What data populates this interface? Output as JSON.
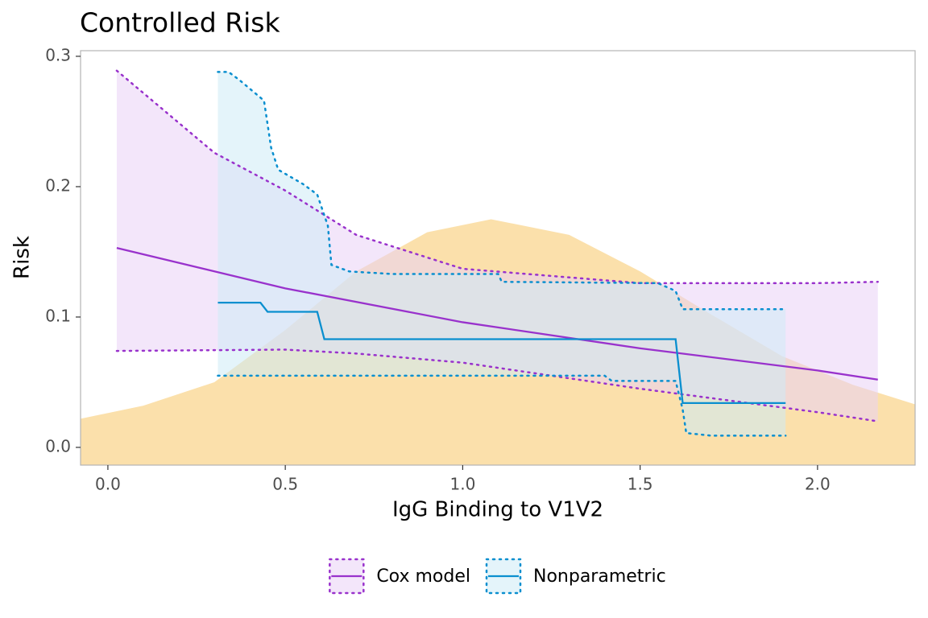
{
  "chart_data": {
    "type": "line",
    "title": "Controlled Risk",
    "x_label": "IgG Binding to V1V2",
    "y_label": "Risk",
    "xlim": [
      -0.077,
      2.275
    ],
    "ylim": [
      -0.0136,
      0.3043
    ],
    "xticks": [
      {
        "value": 0,
        "label": "0.0"
      },
      {
        "value": 0.5,
        "label": "0.5"
      },
      {
        "value": 1,
        "label": "1.0"
      },
      {
        "value": 1.5,
        "label": "1.5"
      },
      {
        "value": 2,
        "label": "2.0"
      }
    ],
    "yticks": [
      {
        "value": 0,
        "label": "0.0"
      },
      {
        "value": 0.1,
        "label": "0.1"
      },
      {
        "value": 0.2,
        "label": "0.2"
      },
      {
        "value": 0.3,
        "label": "0.3"
      }
    ],
    "grid": false,
    "legend_position": "bottom",
    "density": {
      "color": "#fbe0ab",
      "x": [
        -0.077,
        0.1,
        0.3,
        0.5,
        0.7,
        0.9,
        1.08,
        1.3,
        1.5,
        1.7,
        1.9,
        2.1,
        2.275
      ],
      "values": [
        0.022,
        0.032,
        0.05,
        0.09,
        0.135,
        0.165,
        0.175,
        0.163,
        0.135,
        0.102,
        0.07,
        0.048,
        0.033
      ]
    },
    "series": [
      {
        "name": "Cox model",
        "color": "#9932cc",
        "band_color": "#e9d2f5",
        "x": [
          0.025,
          0.5,
          1.0,
          1.5,
          2.0,
          2.17
        ],
        "values": [
          0.153,
          0.122,
          0.096,
          0.076,
          0.059,
          0.052
        ],
        "upper": {
          "x": [
            0.025,
            0.3,
            0.5,
            0.7,
            1.0,
            1.5,
            2.0,
            2.17
          ],
          "values": [
            0.289,
            0.226,
            0.197,
            0.163,
            0.137,
            0.126,
            0.126,
            0.127
          ]
        },
        "lower": {
          "x": [
            0.025,
            0.5,
            0.7,
            1.0,
            1.5,
            2.0,
            2.17
          ],
          "values": [
            0.074,
            0.075,
            0.072,
            0.065,
            0.045,
            0.027,
            0.02
          ]
        }
      },
      {
        "name": "Nonparametric",
        "color": "#0a8fcf",
        "band_color": "#cdebf5",
        "x": [
          0.31,
          0.43,
          0.45,
          0.59,
          0.61,
          1.6,
          1.62,
          1.91
        ],
        "values": [
          0.111,
          0.111,
          0.104,
          0.104,
          0.083,
          0.083,
          0.034,
          0.034
        ],
        "upper": {
          "x": [
            0.31,
            0.34,
            0.37,
            0.44,
            0.46,
            0.48,
            0.55,
            0.59,
            0.62,
            0.63,
            0.68,
            0.8,
            1.1,
            1.11,
            1.55,
            1.6,
            1.62,
            1.91
          ],
          "values": [
            0.288,
            0.288,
            0.282,
            0.266,
            0.23,
            0.213,
            0.202,
            0.194,
            0.17,
            0.14,
            0.135,
            0.133,
            0.133,
            0.127,
            0.126,
            0.12,
            0.106,
            0.106
          ]
        },
        "lower": {
          "x": [
            0.31,
            1.4,
            1.42,
            1.6,
            1.62,
            1.63,
            1.7,
            1.91
          ],
          "values": [
            0.055,
            0.055,
            0.051,
            0.051,
            0.029,
            0.011,
            0.009,
            0.009
          ]
        }
      }
    ]
  }
}
